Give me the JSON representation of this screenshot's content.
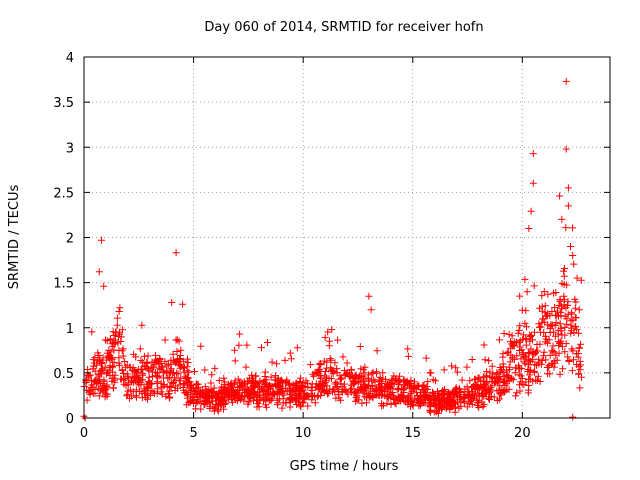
{
  "chart_data": {
    "type": "scatter",
    "title": "Day 060 of 2014, SRMTID for receiver hofn",
    "xlabel": "GPS time / hours",
    "ylabel": "SRMTID / TECUs",
    "xlim": [
      0,
      24
    ],
    "ylim": [
      0,
      4
    ],
    "xticks": [
      0,
      5,
      10,
      15,
      20
    ],
    "yticks": [
      0,
      0.5,
      1,
      1.5,
      2,
      2.5,
      3,
      3.5,
      4
    ],
    "xtick_labels": [
      "0",
      "5",
      "10",
      "15",
      "20"
    ],
    "ytick_labels": [
      "0",
      "0.5",
      "1",
      "1.5",
      "2",
      "2.5",
      "3",
      "3.5",
      "4"
    ],
    "grid": true,
    "marker": "+",
    "color": "#ff0000",
    "series": [
      {
        "name": "SRMTID",
        "profile": [
          {
            "x": 0.0,
            "y": 0.35
          },
          {
            "x": 0.3,
            "y": 0.35
          },
          {
            "x": 0.6,
            "y": 0.55
          },
          {
            "x": 1.0,
            "y": 0.45
          },
          {
            "x": 1.5,
            "y": 0.75
          },
          {
            "x": 2.0,
            "y": 0.4
          },
          {
            "x": 3.0,
            "y": 0.45
          },
          {
            "x": 4.0,
            "y": 0.45
          },
          {
            "x": 4.3,
            "y": 0.65
          },
          {
            "x": 4.6,
            "y": 0.4
          },
          {
            "x": 5.0,
            "y": 0.25
          },
          {
            "x": 6.0,
            "y": 0.2
          },
          {
            "x": 7.0,
            "y": 0.3
          },
          {
            "x": 8.0,
            "y": 0.3
          },
          {
            "x": 9.0,
            "y": 0.3
          },
          {
            "x": 10.0,
            "y": 0.25
          },
          {
            "x": 11.0,
            "y": 0.45
          },
          {
            "x": 11.5,
            "y": 0.4
          },
          {
            "x": 12.0,
            "y": 0.35
          },
          {
            "x": 13.0,
            "y": 0.35
          },
          {
            "x": 14.0,
            "y": 0.3
          },
          {
            "x": 15.0,
            "y": 0.3
          },
          {
            "x": 16.0,
            "y": 0.18
          },
          {
            "x": 17.0,
            "y": 0.2
          },
          {
            "x": 18.0,
            "y": 0.3
          },
          {
            "x": 19.0,
            "y": 0.4
          },
          {
            "x": 20.0,
            "y": 0.75
          },
          {
            "x": 20.5,
            "y": 0.6
          },
          {
            "x": 21.0,
            "y": 0.95
          },
          {
            "x": 21.5,
            "y": 0.9
          },
          {
            "x": 22.0,
            "y": 1.2
          },
          {
            "x": 22.5,
            "y": 0.8
          },
          {
            "x": 22.7,
            "y": 0.6
          }
        ],
        "peaks": [
          {
            "x": 0.8,
            "y": 1.97
          },
          {
            "x": 0.7,
            "y": 1.62
          },
          {
            "x": 0.9,
            "y": 1.46
          },
          {
            "x": 1.6,
            "y": 1.18
          },
          {
            "x": 4.2,
            "y": 1.83
          },
          {
            "x": 4.0,
            "y": 1.28
          },
          {
            "x": 4.5,
            "y": 1.26
          },
          {
            "x": 7.1,
            "y": 0.93
          },
          {
            "x": 8.1,
            "y": 0.78
          },
          {
            "x": 11.3,
            "y": 0.98
          },
          {
            "x": 11.2,
            "y": 0.85
          },
          {
            "x": 13.0,
            "y": 1.35
          },
          {
            "x": 13.1,
            "y": 1.2
          },
          {
            "x": 20.4,
            "y": 2.29
          },
          {
            "x": 20.5,
            "y": 2.6
          },
          {
            "x": 20.5,
            "y": 2.93
          },
          {
            "x": 20.3,
            "y": 2.1
          },
          {
            "x": 21.0,
            "y": 1.4
          },
          {
            "x": 21.7,
            "y": 2.46
          },
          {
            "x": 21.8,
            "y": 2.2
          },
          {
            "x": 22.0,
            "y": 3.73
          },
          {
            "x": 22.0,
            "y": 2.98
          },
          {
            "x": 22.1,
            "y": 2.55
          },
          {
            "x": 22.1,
            "y": 2.35
          },
          {
            "x": 22.2,
            "y": 1.9
          },
          {
            "x": 22.3,
            "y": 1.8
          },
          {
            "x": 22.5,
            "y": 1.55
          },
          {
            "x": 22.6,
            "y": 1.2
          },
          {
            "x": 0.0,
            "y": 0.02
          },
          {
            "x": 0.05,
            "y": 0.0
          },
          {
            "x": 22.3,
            "y": 0.01
          }
        ],
        "n_points": 1800,
        "x_range": [
          0.0,
          22.7
        ]
      }
    ]
  }
}
